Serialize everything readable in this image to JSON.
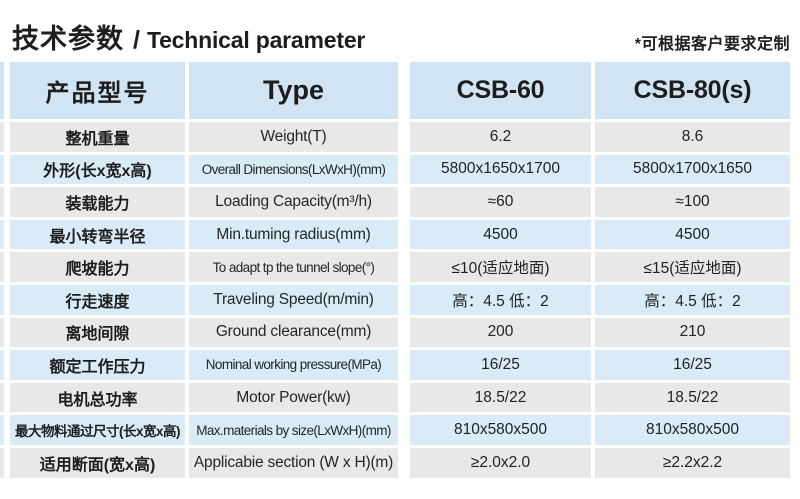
{
  "page": {
    "title_cn": "技术参数",
    "title_slash": "/",
    "title_en": "Technical parameter",
    "note": "*可根据客户要求定制"
  },
  "colors": {
    "header_bg": "#d1e4f3",
    "row_blue": "#d9ebf7",
    "row_gray": "#e8e8e6",
    "text": "#1d1d1d"
  },
  "table": {
    "header": {
      "col_cn": "产品型号",
      "col_type": "Type",
      "col_m1": "CSB-60",
      "col_m2": "CSB-80(s)"
    },
    "rows": [
      {
        "cn": "整机重量",
        "en": "Weight(T)",
        "v1": "6.2",
        "v2": "8.6"
      },
      {
        "cn": "外形(长x宽x高)",
        "en": "Overall Dimensions(LxWxH)(mm)",
        "v1": "5800x1650x1700",
        "v2": "5800x1700x1650"
      },
      {
        "cn": "装载能力",
        "en": "Loading Capacity(m³/h)",
        "v1": "≈60",
        "v2": "≈100"
      },
      {
        "cn": "最小转弯半径",
        "en": "Min.tuming radius(mm)",
        "v1": "4500",
        "v2": "4500"
      },
      {
        "cn": "爬坡能力",
        "en": "To adapt tp the tunnel slope(°)",
        "v1": "≤10(适应地面)",
        "v2": "≤15(适应地面)"
      },
      {
        "cn": "行走速度",
        "en": "Traveling Speed(m/min)",
        "v1": "高：4.5 低：2",
        "v2": "高：4.5 低：2"
      },
      {
        "cn": "离地间隙",
        "en": "Ground clearance(mm)",
        "v1": "200",
        "v2": "210"
      },
      {
        "cn": "额定工作压力",
        "en": "Nominal working pressure(MPa)",
        "v1": "16/25",
        "v2": "16/25"
      },
      {
        "cn": "电机总功率",
        "en": "Motor Power(kw)",
        "v1": "18.5/22",
        "v2": "18.5/22"
      },
      {
        "cn": "最大物料通过尺寸(长x宽x高)",
        "en": "Max.materials by size(LxWxH)(mm)",
        "v1": "810x580x500",
        "v2": "810x580x500"
      },
      {
        "cn": "适用断面(宽x高)",
        "en": "Applicabie section (W x H)(m)",
        "v1": "≥2.0x2.0",
        "v2": "≥2.2x2.2"
      }
    ]
  }
}
